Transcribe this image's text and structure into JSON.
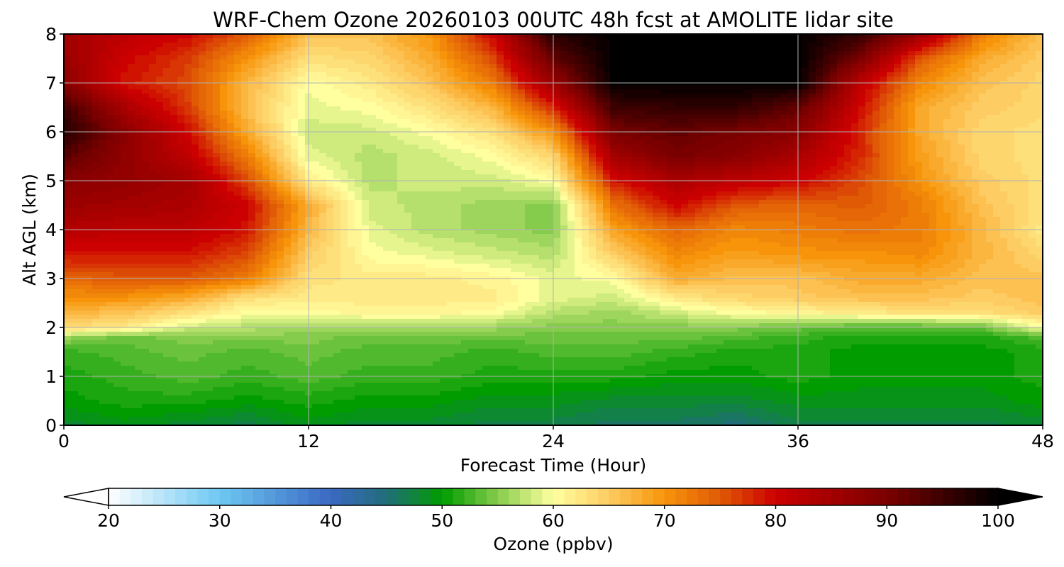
{
  "chart_data": {
    "type": "heatmap",
    "title": "WRF-Chem Ozone  20260103 00UTC 48h fcst at AMOLITE lidar site",
    "xlabel": "Forecast Time (Hour)",
    "ylabel": "Alt AGL (km)",
    "xlim": [
      0,
      48
    ],
    "ylim": [
      0,
      8
    ],
    "x_ticks": [
      0,
      12,
      24,
      36,
      48
    ],
    "y_ticks": [
      0,
      1,
      2,
      3,
      4,
      5,
      6,
      7,
      8
    ],
    "grid": true,
    "x_hours": [
      0,
      3,
      6,
      9,
      12,
      15,
      18,
      21,
      24,
      27,
      30,
      33,
      36,
      39,
      42,
      45,
      48
    ],
    "z_km": [
      0,
      0.5,
      1,
      1.5,
      1.8,
      2,
      2.3,
      2.6,
      3,
      3.5,
      4,
      4.5,
      5,
      5.5,
      6,
      6.5,
      7,
      7.5,
      8
    ],
    "ozone_ppbv": [
      [
        48,
        49,
        48,
        47,
        49,
        48,
        48,
        47,
        47,
        46,
        46,
        45,
        47,
        47,
        47,
        47,
        48
      ],
      [
        50,
        51,
        51,
        50,
        51,
        50,
        50,
        49,
        49,
        48,
        48,
        48,
        49,
        49,
        49,
        49,
        50
      ],
      [
        51,
        52,
        53,
        52,
        53,
        52,
        52,
        51,
        51,
        51,
        50,
        50,
        51,
        50,
        50,
        50,
        51
      ],
      [
        52,
        53,
        54,
        53,
        54,
        53,
        53,
        52,
        53,
        53,
        52,
        51,
        51,
        50,
        50,
        50,
        51
      ],
      [
        56,
        54,
        55,
        55,
        55,
        54,
        54,
        54,
        54,
        54,
        54,
        53,
        52,
        51,
        51,
        51,
        53
      ],
      [
        64,
        62,
        58,
        57,
        56,
        56,
        56,
        56,
        55,
        55,
        55,
        55,
        54,
        53,
        53,
        54,
        60
      ],
      [
        67,
        66,
        63,
        60,
        60,
        61,
        61,
        60,
        57,
        56,
        58,
        60,
        61,
        62,
        63,
        63,
        65
      ],
      [
        70,
        70,
        68,
        63,
        62,
        62,
        62,
        62,
        59,
        58,
        62,
        64,
        65,
        66,
        66,
        65,
        66
      ],
      [
        74,
        75,
        75,
        72,
        63,
        62,
        62,
        61,
        59,
        60,
        68,
        66,
        66,
        68,
        68,
        66,
        66
      ],
      [
        79,
        79,
        79,
        76,
        65,
        60,
        59,
        58,
        57,
        65,
        71,
        69,
        70,
        70,
        71,
        67,
        64
      ],
      [
        83,
        82,
        82,
        79,
        67,
        59,
        57,
        56,
        55,
        69,
        74,
        71,
        72,
        73,
        72,
        67,
        62
      ],
      [
        86,
        85,
        84,
        80,
        68,
        58,
        57,
        56,
        55,
        73,
        80,
        75,
        74,
        75,
        72,
        66,
        63
      ],
      [
        88,
        87,
        85,
        76,
        62,
        57,
        58,
        58,
        60,
        79,
        84,
        82,
        80,
        76,
        70,
        65,
        63
      ],
      [
        93,
        87,
        82,
        72,
        59,
        57,
        58,
        60,
        64,
        85,
        90,
        88,
        84,
        78,
        69,
        64,
        63
      ],
      [
        97,
        88,
        80,
        68,
        58,
        58,
        60,
        63,
        70,
        90,
        92,
        90,
        88,
        78,
        68,
        64,
        63
      ],
      [
        95,
        84,
        77,
        66,
        59,
        60,
        63,
        67,
        78,
        95,
        96,
        96,
        92,
        80,
        68,
        65,
        64
      ],
      [
        88,
        79,
        76,
        67,
        60,
        62,
        66,
        72,
        86,
        100,
        100,
        100,
        100,
        82,
        71,
        66,
        64
      ],
      [
        86,
        80,
        77,
        70,
        63,
        64,
        68,
        76,
        92,
        100,
        100,
        100,
        100,
        90,
        75,
        68,
        65
      ],
      [
        85,
        82,
        80,
        75,
        66,
        66,
        70,
        80,
        97,
        100,
        100,
        100,
        100,
        96,
        86,
        72,
        66
      ]
    ],
    "colorbar": {
      "label": "Ozone  (ppbv)",
      "min": 20,
      "max": 100,
      "ticks": [
        20,
        30,
        40,
        50,
        60,
        70,
        80,
        90,
        100
      ],
      "extend": "both",
      "colormap_stops": [
        {
          "v": 20,
          "c": "#ffffff"
        },
        {
          "v": 30,
          "c": "#6ec8f2"
        },
        {
          "v": 40,
          "c": "#3a68c2"
        },
        {
          "v": 45,
          "c": "#216d7a"
        },
        {
          "v": 50,
          "c": "#009c00"
        },
        {
          "v": 55,
          "c": "#86cc4c"
        },
        {
          "v": 60,
          "c": "#ffffa0"
        },
        {
          "v": 65,
          "c": "#fdcc62"
        },
        {
          "v": 70,
          "c": "#f7940a"
        },
        {
          "v": 75,
          "c": "#e05a06"
        },
        {
          "v": 80,
          "c": "#cc0000"
        },
        {
          "v": 90,
          "c": "#7a0000"
        },
        {
          "v": 100,
          "c": "#000000"
        }
      ]
    }
  }
}
